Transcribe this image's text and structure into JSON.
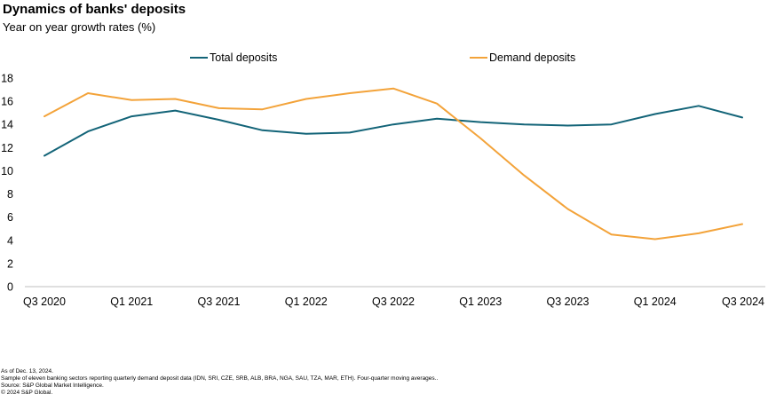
{
  "chart_data": {
    "type": "line",
    "title": "Dynamics of banks' deposits",
    "subtitle": "Year on year growth rates (%)",
    "x": [
      "Q3 2020",
      "Q4 2020",
      "Q1 2021",
      "Q2 2021",
      "Q3 2021",
      "Q4 2021",
      "Q1 2022",
      "Q2 2022",
      "Q3 2022",
      "Q4 2022",
      "Q1 2023",
      "Q2 2023",
      "Q3 2023",
      "Q4 2023",
      "Q1 2024",
      "Q2 2024",
      "Q3 2024"
    ],
    "tick_labels": [
      "Q3 2020",
      "Q1 2021",
      "Q3 2021",
      "Q1 2022",
      "Q3 2022",
      "Q1 2023",
      "Q3 2023",
      "Q1 2024",
      "Q3 2024"
    ],
    "ylim": [
      0,
      18
    ],
    "yticks": [
      "0",
      "2",
      "4",
      "6",
      "8",
      "10",
      "12",
      "14",
      "16",
      "18"
    ],
    "grid": false,
    "legend_position": "top",
    "series": [
      {
        "name": "Total deposits",
        "color": "#136478",
        "values": [
          11.3,
          13.4,
          14.7,
          15.2,
          14.4,
          13.5,
          13.2,
          13.3,
          14.0,
          14.5,
          14.2,
          14.0,
          13.9,
          14.0,
          14.9,
          15.6,
          14.6
        ]
      },
      {
        "name": "Demand deposits",
        "color": "#F3A33A",
        "values": [
          14.7,
          16.7,
          16.1,
          16.2,
          15.4,
          15.3,
          16.2,
          16.7,
          17.1,
          15.8,
          12.8,
          9.6,
          6.7,
          4.5,
          4.1,
          4.6,
          5.4
        ]
      }
    ]
  },
  "footnotes": [
    "As of Dec. 13, 2024.",
    "Sample of eleven banking sectors reporting quarterly demand deposit data (IDN, SRI, CZE, SRB, ALB, BRA, NGA, SAU, TZA, MAR, ETH). Four-quarter moving averages..",
    "Source: S&P Global Market Intelligence.",
    "© 2024 S&P Global."
  ]
}
